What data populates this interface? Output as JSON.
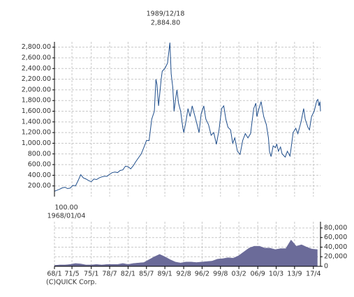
{
  "chart_data": [
    {
      "type": "line",
      "annotations": [
        {
          "date": "1989/12/18",
          "label": "2,884.80",
          "value": 2884.8
        },
        {
          "date": "1968/01/04",
          "label": "100.00",
          "value": 100
        }
      ],
      "credit": "(C)QUICK Corp.",
      "x": [
        1968.0,
        1968.5,
        1969.0,
        1969.5,
        1970.0,
        1970.5,
        1971.0,
        1971.5,
        1972.0,
        1972.5,
        1973.0,
        1973.5,
        1974.0,
        1974.5,
        1975.0,
        1975.5,
        1976.0,
        1976.5,
        1977.0,
        1977.5,
        1978.0,
        1978.5,
        1979.0,
        1979.5,
        1980.0,
        1980.5,
        1981.0,
        1981.5,
        1982.0,
        1982.5,
        1983.0,
        1983.5,
        1984.0,
        1984.5,
        1985.0,
        1985.5,
        1986.0,
        1986.5,
        1987.0,
        1987.3,
        1987.5,
        1987.8,
        1988.0,
        1988.3,
        1988.5,
        1989.0,
        1989.5,
        1989.96,
        1990.2,
        1990.5,
        1990.75,
        1991.0,
        1991.3,
        1991.6,
        1992.0,
        1992.4,
        1992.6,
        1993.0,
        1993.4,
        1993.8,
        1994.2,
        1994.6,
        1995.0,
        1995.5,
        1995.9,
        1996.4,
        1996.8,
        1997.3,
        1997.8,
        1998.3,
        1998.8,
        1999.3,
        1999.8,
        2000.2,
        2000.6,
        2001.0,
        2001.5,
        2001.9,
        2002.3,
        2002.8,
        2003.3,
        2003.8,
        2004.3,
        2004.8,
        2005.3,
        2005.9,
        2006.3,
        2006.5,
        2006.9,
        2007.3,
        2007.8,
        2008.3,
        2008.7,
        2008.9,
        2009.2,
        2009.6,
        2010.0,
        2010.3,
        2010.6,
        2011.0,
        2011.3,
        2011.9,
        2012.3,
        2012.8,
        2013.0,
        2013.4,
        2013.9,
        2014.3,
        2014.9,
        2015.4,
        2015.7,
        2016.2,
        2016.5,
        2016.9,
        2017.4,
        2017.9,
        2018.1,
        2018.3,
        2018.5,
        2018.6
      ],
      "series": [
        {
          "color": "#1f4e8c",
          "values": [
            100,
            120,
            140,
            165,
            175,
            150,
            160,
            210,
            200,
            300,
            410,
            350,
            330,
            300,
            280,
            330,
            320,
            350,
            370,
            380,
            380,
            420,
            450,
            460,
            450,
            490,
            500,
            570,
            560,
            520,
            580,
            660,
            730,
            800,
            920,
            1050,
            1050,
            1450,
            1600,
            2200,
            2100,
            1700,
            1900,
            2200,
            2350,
            2400,
            2500,
            2884.8,
            2300,
            2050,
            1600,
            1800,
            2000,
            1750,
            1600,
            1300,
            1200,
            1400,
            1650,
            1500,
            1700,
            1550,
            1400,
            1200,
            1550,
            1700,
            1450,
            1350,
            1150,
            1200,
            980,
            1250,
            1650,
            1700,
            1450,
            1300,
            1250,
            1000,
            1100,
            850,
            790,
            1050,
            1180,
            1100,
            1180,
            1650,
            1750,
            1500,
            1650,
            1780,
            1500,
            1350,
            1100,
            850,
            750,
            950,
            920,
            980,
            850,
            930,
            800,
            740,
            850,
            760,
            900,
            1200,
            1280,
            1180,
            1400,
            1650,
            1450,
            1300,
            1250,
            1500,
            1600,
            1800,
            1820,
            1700,
            1780,
            1600
          ]
        }
      ],
      "xlim": [
        1968.0,
        2018.6
      ],
      "xticks": [
        {
          "value": 1968.0,
          "label": "68/1"
        },
        {
          "value": 1971.33,
          "label": "71/5"
        },
        {
          "value": 1975.0,
          "label": "75/1"
        },
        {
          "value": 1978.5,
          "label": "78/7"
        },
        {
          "value": 1982.0,
          "label": "82/1"
        },
        {
          "value": 1985.5,
          "label": "85/7"
        },
        {
          "value": 1989.0,
          "label": "89/1"
        },
        {
          "value": 1992.58,
          "label": "92/8"
        },
        {
          "value": 1996.08,
          "label": "96/2"
        },
        {
          "value": 1999.58,
          "label": "99/8"
        },
        {
          "value": 2003.08,
          "label": "03/2"
        },
        {
          "value": 2006.67,
          "label": "06/9"
        },
        {
          "value": 2010.17,
          "label": "10/3"
        },
        {
          "value": 2013.67,
          "label": "13/9"
        },
        {
          "value": 2017.25,
          "label": "17/4"
        }
      ],
      "ylim": [
        0,
        2900
      ],
      "yticks": [
        {
          "value": 200,
          "label": "200.00"
        },
        {
          "value": 400,
          "label": "400.00"
        },
        {
          "value": 600,
          "label": "600.00"
        },
        {
          "value": 800,
          "label": "800.00"
        },
        {
          "value": 1000,
          "label": "1,000.00"
        },
        {
          "value": 1200,
          "label": "1,200.00"
        },
        {
          "value": 1400,
          "label": "1,400.00"
        },
        {
          "value": 1600,
          "label": "1,600.00"
        },
        {
          "value": 1800,
          "label": "1,800.00"
        },
        {
          "value": 2000,
          "label": "2,000.00"
        },
        {
          "value": 2200,
          "label": "2,200.00"
        },
        {
          "value": 2400,
          "label": "2,400.00"
        },
        {
          "value": 2600,
          "label": "2,600.00"
        },
        {
          "value": 2800,
          "label": "2,800.00"
        }
      ],
      "grid": true
    },
    {
      "type": "area",
      "x": [
        1968,
        1969,
        1970,
        1971,
        1972,
        1973,
        1974,
        1975,
        1976,
        1977,
        1978,
        1979,
        1980,
        1981,
        1982,
        1983,
        1984,
        1985,
        1986,
        1987,
        1988,
        1989,
        1990,
        1991,
        1992,
        1993,
        1994,
        1995,
        1996,
        1997,
        1998,
        1999,
        2000,
        2001,
        2002,
        2003,
        2004,
        2005,
        2006,
        2007,
        2008,
        2009,
        2010,
        2011,
        2012,
        2013,
        2014,
        2015,
        2016,
        2017,
        2018
      ],
      "series": [
        {
          "color": "#6b6b99",
          "values": [
            2000,
            3000,
            3000,
            4000,
            6000,
            5000,
            3000,
            3000,
            4000,
            3000,
            4000,
            4000,
            4000,
            6000,
            4000,
            6000,
            7000,
            8000,
            14000,
            20000,
            25000,
            20000,
            14000,
            9000,
            7000,
            9000,
            9000,
            8000,
            9000,
            10000,
            11000,
            15000,
            16000,
            18000,
            17000,
            22000,
            30000,
            38000,
            42000,
            42000,
            38000,
            38000,
            35000,
            37000,
            37000,
            55000,
            42000,
            45000,
            40000,
            36000,
            35000
          ]
        }
      ],
      "ylim": [
        0,
        93000
      ],
      "yticks": [
        0,
        {
          "value": 20000,
          "label": "20,000"
        },
        {
          "value": 40000,
          "label": "40,000"
        },
        {
          "value": 60000,
          "label": "60,000"
        },
        {
          "value": 80000,
          "label": "80,000"
        }
      ],
      "grid": true
    }
  ]
}
